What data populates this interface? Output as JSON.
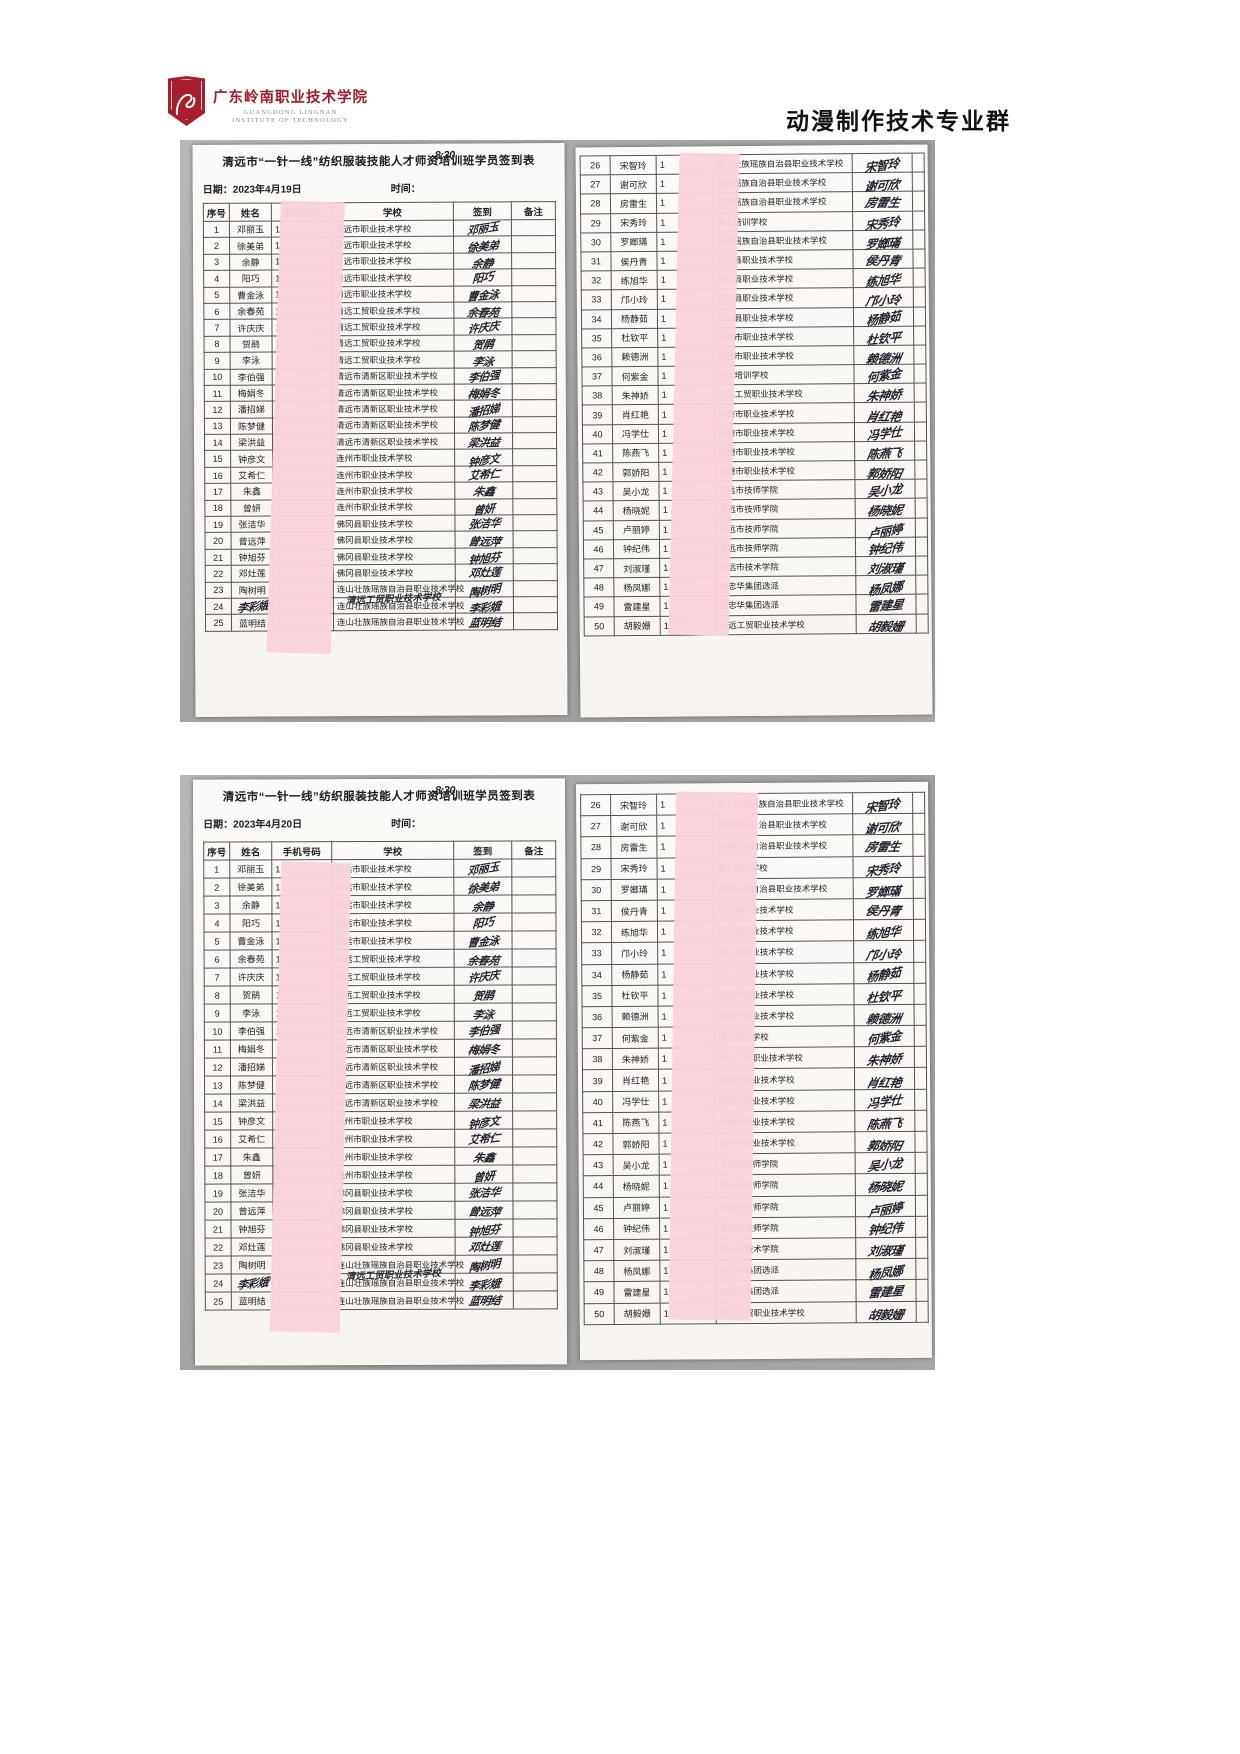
{
  "header": {
    "logo_cn": "广东岭南职业技术学院",
    "logo_en_line1": "GUANGDONG LINGNAN",
    "logo_en_line2": "INSTITUTE OF TECHNOLOGY",
    "group_title": "动漫制作技术专业群"
  },
  "colors": {
    "logo_red": "#a81e2c",
    "redaction_pink": "#f8d2db",
    "scan_gray": "#a3a3a3"
  },
  "sheet_common": {
    "title": "清远市“一针一线”纺织服装技能人才师资培训班学员签到表",
    "date_label": "日期：",
    "time_label": "时间：",
    "time_value": "8:30",
    "columns": [
      "序号",
      "姓名",
      "手机号码",
      "学校",
      "签到",
      "备注"
    ],
    "phone_visible": "1"
  },
  "sheets": [
    {
      "date": "2023年4月19日"
    },
    {
      "date": "2023年4月20日"
    }
  ],
  "roster_left": [
    {
      "n": "1",
      "name": "邓丽玉",
      "school": "清远市职业技术学校"
    },
    {
      "n": "2",
      "name": "徐美弟",
      "school": "清远市职业技术学校"
    },
    {
      "n": "3",
      "name": "余静",
      "school": "清远市职业技术学校"
    },
    {
      "n": "4",
      "name": "阳巧",
      "school": "清远市职业技术学校"
    },
    {
      "n": "5",
      "name": "曹金泳",
      "school": "清远市职业技术学校"
    },
    {
      "n": "6",
      "name": "余春苑",
      "school": "清远工贸职业技术学校"
    },
    {
      "n": "7",
      "name": "许庆庆",
      "school": "清远工贸职业技术学校"
    },
    {
      "n": "8",
      "name": "贺鹃",
      "school": "清远工贸职业技术学校"
    },
    {
      "n": "9",
      "name": "李泳",
      "school": "清远工贸职业技术学校"
    },
    {
      "n": "10",
      "name": "李伯强",
      "school": "清远市清新区职业技术学校"
    },
    {
      "n": "11",
      "name": "梅娟冬",
      "school": "清远市清新区职业技术学校"
    },
    {
      "n": "12",
      "name": "潘招娣",
      "school": "清远市清新区职业技术学校"
    },
    {
      "n": "13",
      "name": "陈梦健",
      "school": "清远市清新区职业技术学校"
    },
    {
      "n": "14",
      "name": "梁洪益",
      "school": "清远市清新区职业技术学校"
    },
    {
      "n": "15",
      "name": "钟彦文",
      "school": "连州市职业技术学校"
    },
    {
      "n": "16",
      "name": "艾希仁",
      "school": "连州市职业技术学校"
    },
    {
      "n": "17",
      "name": "朱鑫",
      "school": "连州市职业技术学校"
    },
    {
      "n": "18",
      "name": "曾妍",
      "school": "连州市职业技术学校"
    },
    {
      "n": "19",
      "name": "张洁华",
      "school": "佛冈县职业技术学校"
    },
    {
      "n": "20",
      "name": "曾远萍",
      "school": "佛冈县职业技术学校"
    },
    {
      "n": "21",
      "name": "钟旭芬",
      "school": "佛冈县职业技术学校"
    },
    {
      "n": "22",
      "name": "邓灶莲",
      "school": "佛冈县职业技术学校"
    },
    {
      "n": "23",
      "name": "陶树明",
      "school": "连山壮族瑶族自治县职业技术学校"
    },
    {
      "n": "24",
      "name": "李彩娥",
      "school": "连山壮族瑶族自治县职业技术学校",
      "scribble_name": true,
      "overlay_school": "清远工贸职业技术学校"
    },
    {
      "n": "25",
      "name": "蓝明结",
      "school": "连山壮族瑶族自治县职业技术学校"
    }
  ],
  "roster_right": [
    {
      "n": "26",
      "name": "宋智玲",
      "school": "连山壮族瑶族自治县职业技术学校"
    },
    {
      "n": "27",
      "name": "谢可欣",
      "school": "连南瑶族自治县职业技术学校"
    },
    {
      "n": "28",
      "name": "房雷生",
      "school": "连南瑶族自治县职业技术学校"
    },
    {
      "n": "29",
      "name": "宋秀玲",
      "school": "博士培训学校"
    },
    {
      "n": "30",
      "name": "罗嫏璊",
      "school": "连南瑶族自治县职业技术学校"
    },
    {
      "n": "31",
      "name": "侯丹青",
      "school": "阳山县职业技术学校"
    },
    {
      "n": "32",
      "name": "练旭华",
      "school": "阳山县职业技术学校"
    },
    {
      "n": "33",
      "name": "邝小玲",
      "school": "阳山县职业技术学校"
    },
    {
      "n": "34",
      "name": "杨静茹",
      "school": "阳山县职业技术学校"
    },
    {
      "n": "35",
      "name": "杜钦平",
      "school": "英德市职业技术学校"
    },
    {
      "n": "36",
      "name": "赖德洲",
      "school": "英德市职业技术学校"
    },
    {
      "n": "37",
      "name": "何紫金",
      "school": "博士培训学校"
    },
    {
      "n": "38",
      "name": "朱神娇",
      "school": "清远工贸职业技术学校"
    },
    {
      "n": "39",
      "name": "肖红艳",
      "school": "英德市职业技术学校"
    },
    {
      "n": "40",
      "name": "冯学仕",
      "school": "英德市职业技术学校"
    },
    {
      "n": "41",
      "name": "陈燕飞",
      "school": "英德市职业技术学校"
    },
    {
      "n": "42",
      "name": "郭娇阳",
      "school": "英德市职业技术学校"
    },
    {
      "n": "43",
      "name": "吴小龙",
      "school": "清远市技师学院"
    },
    {
      "n": "44",
      "name": "杨晓妮",
      "school": "清远市技师学院"
    },
    {
      "n": "45",
      "name": "卢丽婷",
      "school": "清远市技师学院"
    },
    {
      "n": "46",
      "name": "钟纪伟",
      "school": "清远市技师学院"
    },
    {
      "n": "47",
      "name": "刘淑瑾",
      "school": "清远市技术学院"
    },
    {
      "n": "48",
      "name": "杨凤娜",
      "school": "由忠华集团选派"
    },
    {
      "n": "49",
      "name": "雷建星",
      "school": "由忠华集团选派"
    },
    {
      "n": "50",
      "name": "胡毅姗",
      "school": "清远工贸职业技术学校"
    }
  ]
}
